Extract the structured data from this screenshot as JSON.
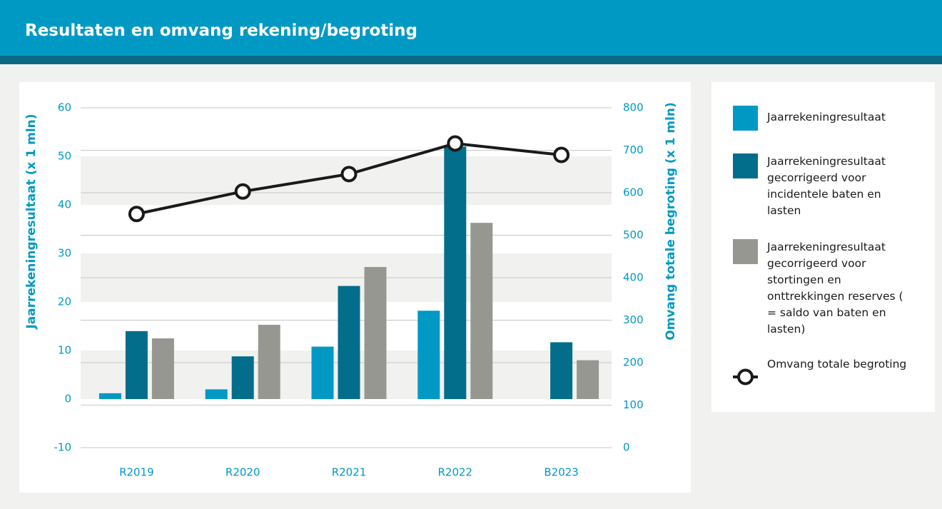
{
  "chart_data": {
    "type": "bar",
    "title": "Resultaten en omvang rekening/begroting",
    "ylabel": "Jaarrekeningresultaat (x 1 mln)",
    "y2label": "Omvang totale begroting (x 1 mln)",
    "categories": [
      "R2019",
      "R2020",
      "R2021",
      "R2022",
      "B2023"
    ],
    "series": [
      {
        "name": "Jaarrekeningresultaat",
        "color": "#0099c4",
        "values": [
          1.2,
          2,
          10.8,
          18.2,
          null
        ]
      },
      {
        "name": "Jaarrekeningresultaat gecorrigeerd voor incidentele baten en lasten",
        "color": "#036e8b",
        "values": [
          14,
          8.8,
          23.3,
          52,
          11.7
        ]
      },
      {
        "name": "Jaarrekeningresultaat gecorrigeerd voor stortingen en onttrekkingen reserves ( = saldo van baten en lasten)",
        "color": "#979792",
        "values": [
          12.5,
          15.3,
          27.2,
          36.3,
          8
        ]
      },
      {
        "name": "Omvang totale begroting",
        "type": "line",
        "axis": "y2",
        "color": "#1a1a1a",
        "values": [
          550,
          603,
          644,
          716,
          689
        ]
      }
    ],
    "ylim": [
      -10,
      60
    ],
    "yticks": [
      -10,
      0,
      10,
      20,
      30,
      40,
      50,
      60
    ],
    "y2lim": [
      0,
      800
    ],
    "y2ticks": [
      0,
      100,
      200,
      300,
      400,
      500,
      600,
      700,
      800
    ],
    "grid": true
  }
}
